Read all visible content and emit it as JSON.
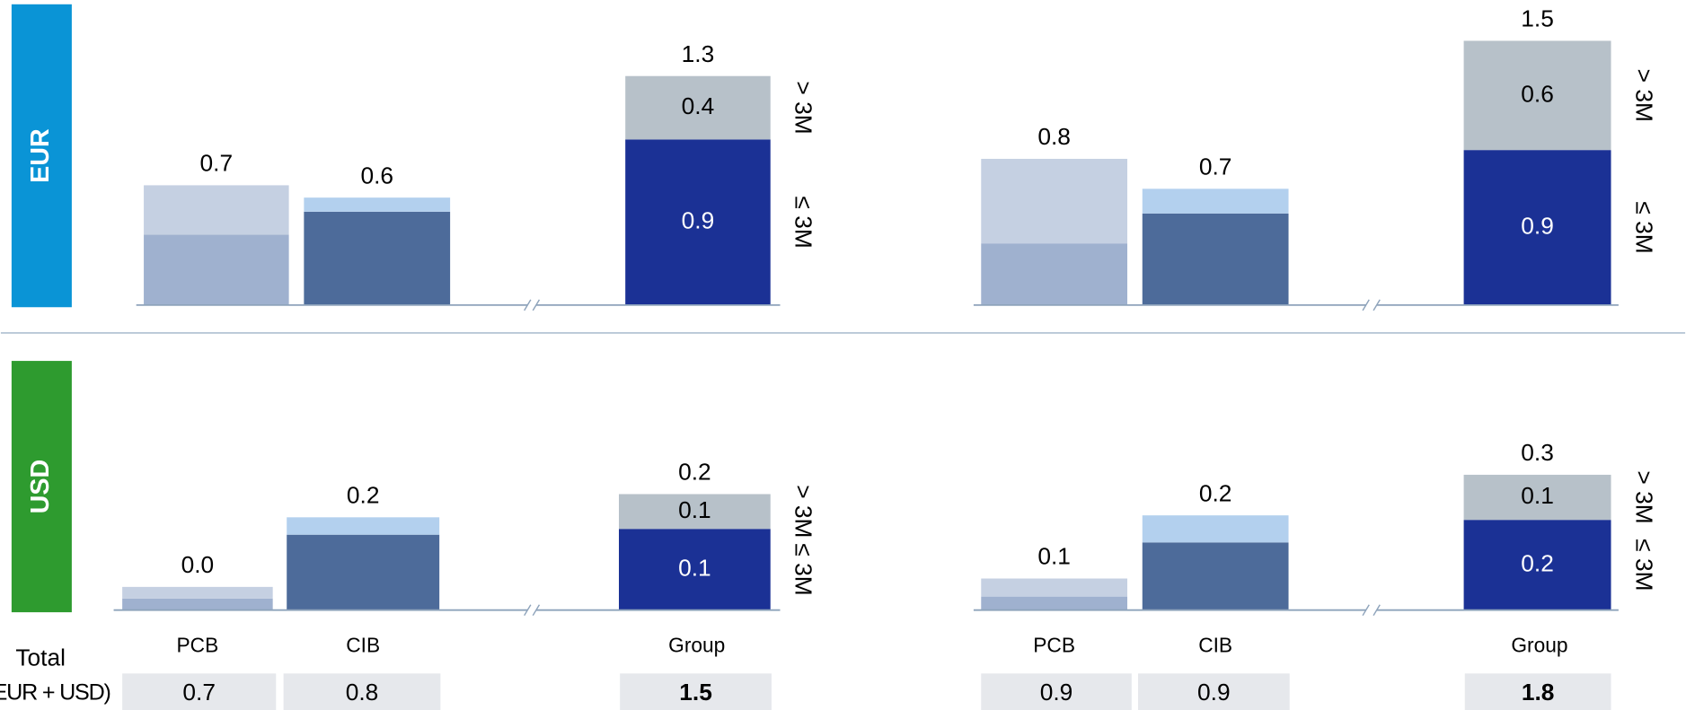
{
  "chart_data": [
    {
      "type": "bar",
      "stacked": true,
      "title": "EUR",
      "ylim": [
        0,
        1.6
      ],
      "series": [
        {
          "name": "≤ 3M",
          "colors": [
            "#9fb1cf",
            "#4d6b9a",
            "#1b3195"
          ],
          "values": [
            0.4,
            0.53,
            0.94
          ],
          "value_labels": [
            null,
            null,
            "0.9"
          ]
        },
        {
          "name": "> 3M",
          "colors": [
            "#c5d0e2",
            "#b3d0ee",
            "#b7c1c9"
          ],
          "values": [
            0.28,
            0.08,
            0.36
          ],
          "value_labels": [
            null,
            null,
            "0.4"
          ]
        }
      ],
      "totals": [
        0.68,
        0.61,
        1.3
      ],
      "total_labels": [
        "0.7",
        "0.6",
        "1.3"
      ]
    },
    {
      "type": "bar",
      "stacked": true,
      "ylim": [
        0,
        1.6
      ],
      "series": [
        {
          "name": "≤ 3M",
          "colors": [
            "#9fb1cf",
            "#4d6b9a",
            "#1b3195"
          ],
          "values": [
            0.35,
            0.52,
            0.88
          ],
          "value_labels": [
            null,
            null,
            "0.9"
          ]
        },
        {
          "name": "> 3M",
          "colors": [
            "#c5d0e2",
            "#b3d0ee",
            "#b7c1c9"
          ],
          "values": [
            0.48,
            0.14,
            0.62
          ],
          "value_labels": [
            null,
            null,
            "0.6"
          ]
        }
      ],
      "totals": [
        0.83,
        0.66,
        1.5
      ],
      "total_labels": [
        "0.8",
        "0.7",
        "1.5"
      ]
    },
    {
      "type": "bar",
      "stacked": true,
      "title": "USD",
      "ylim": [
        0,
        0.45
      ],
      "categories": [
        "PCB",
        "CIB",
        "Group"
      ],
      "series": [
        {
          "name": "≤ 3M",
          "colors": [
            "#9fb1cf",
            "#4d6b9a",
            "#1b3195"
          ],
          "values": [
            0.02,
            0.13,
            0.14
          ],
          "value_labels": [
            null,
            null,
            "0.1"
          ]
        },
        {
          "name": "> 3M",
          "colors": [
            "#c5d0e2",
            "#b3d0ee",
            "#b7c1c9"
          ],
          "values": [
            0.02,
            0.03,
            0.06
          ],
          "value_labels": [
            null,
            null,
            "0.1"
          ]
        }
      ],
      "totals": [
        0.04,
        0.16,
        0.2
      ],
      "total_labels": [
        "0.0",
        "0.2",
        "0.2"
      ]
    },
    {
      "type": "bar",
      "stacked": true,
      "ylim": [
        0,
        0.6
      ],
      "categories": [
        "PCB",
        "CIB",
        "Group"
      ],
      "series": [
        {
          "name": "≤ 3M",
          "colors": [
            "#9fb1cf",
            "#4d6b9a",
            "#1b3195"
          ],
          "values": [
            0.03,
            0.15,
            0.2
          ],
          "value_labels": [
            null,
            null,
            "0.2"
          ]
        },
        {
          "name": "> 3M",
          "colors": [
            "#c5d0e2",
            "#b3d0ee",
            "#b7c1c9"
          ],
          "values": [
            0.04,
            0.06,
            0.1
          ],
          "value_labels": [
            null,
            null,
            "0.1"
          ]
        }
      ],
      "totals": [
        0.07,
        0.21,
        0.3
      ],
      "total_labels": [
        "0.1",
        "0.2",
        "0.3"
      ]
    }
  ],
  "total_row": {
    "label": [
      "Total",
      "(EUR + USD)"
    ],
    "values": [
      [
        0.7,
        0.8,
        1.5
      ],
      [
        0.9,
        0.9,
        1.8
      ]
    ]
  }
}
